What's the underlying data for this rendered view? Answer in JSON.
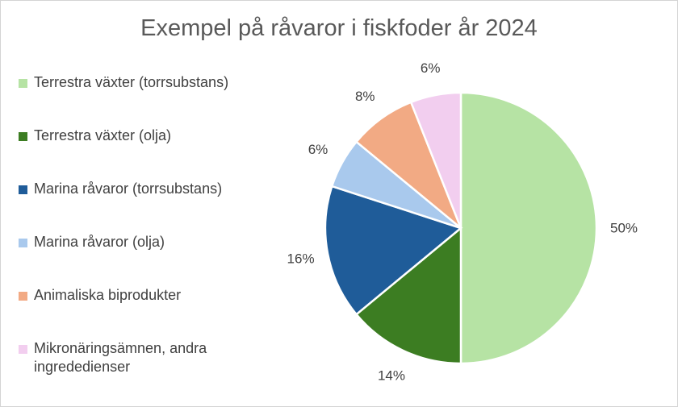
{
  "chart_data": {
    "type": "pie",
    "title": "Exempel på råvaror i fiskfoder år 2024",
    "categories": [
      "Terrestra växter (torrsubstans)",
      "Terrestra växter (olja)",
      "Marina råvaror (torrsubstans)",
      "Marina råvaror (olja)",
      "Animaliska biprodukter",
      "Mikronäringsämnen, andra ingrededienser"
    ],
    "values": [
      50,
      14,
      16,
      6,
      8,
      6
    ],
    "value_labels": [
      "50%",
      "14%",
      "16%",
      "6%",
      "8%",
      "6%"
    ],
    "colors": [
      "#b6e3a4",
      "#3c7d22",
      "#1f5c99",
      "#a9c9ed",
      "#f2aa84",
      "#f2ceef"
    ],
    "legend_position": "left"
  }
}
